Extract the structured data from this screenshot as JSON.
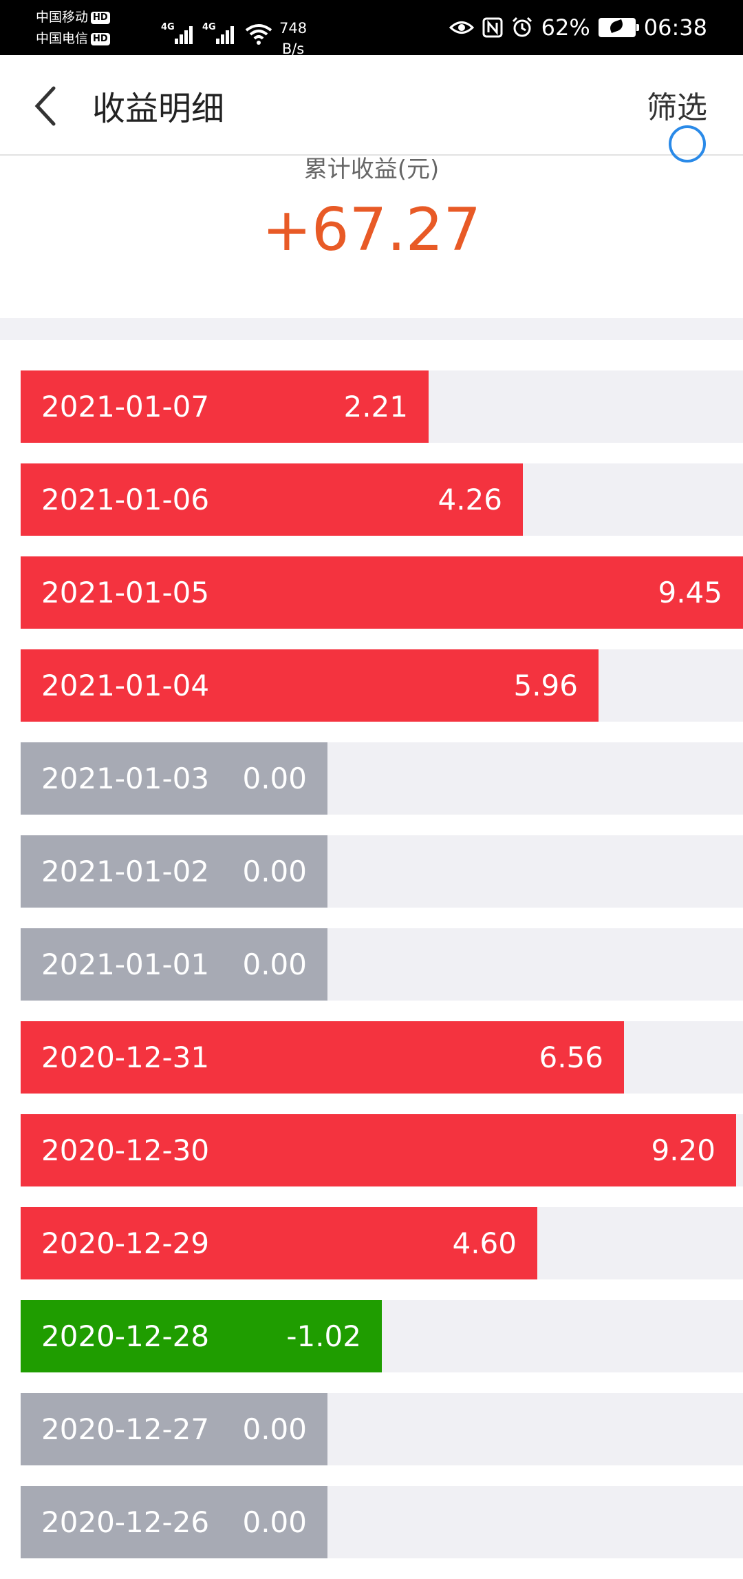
{
  "status_bar": {
    "carrier1": "中国移动",
    "carrier2": "中国电信",
    "hd_badge": "HD",
    "network1": "4G",
    "network2": "4G",
    "speed_value": "748",
    "speed_unit": "B/s",
    "battery_percent": "62%",
    "time": "06:38"
  },
  "header": {
    "title": "收益明细",
    "filter_label": "筛选"
  },
  "summary": {
    "label": "累计收益(元)",
    "total": "+67.27"
  },
  "colors": {
    "positive": "#f4333f",
    "zero": "#a7aab4",
    "negative": "#1f9d00",
    "total": "#e85a26"
  },
  "rows": [
    {
      "date": "2021-01-07",
      "value": "2.21",
      "status": "positive",
      "share": 0.565
    },
    {
      "date": "2021-01-06",
      "value": "4.26",
      "status": "positive",
      "share": 0.695
    },
    {
      "date": "2021-01-05",
      "value": "9.45",
      "status": "positive",
      "share": 1.0
    },
    {
      "date": "2021-01-04",
      "value": "5.96",
      "status": "positive",
      "share": 0.8
    },
    {
      "date": "2021-01-03",
      "value": "0.00",
      "status": "zero",
      "share": 0.425
    },
    {
      "date": "2021-01-02",
      "value": "0.00",
      "status": "zero",
      "share": 0.425
    },
    {
      "date": "2021-01-01",
      "value": "0.00",
      "status": "zero",
      "share": 0.425
    },
    {
      "date": "2020-12-31",
      "value": "6.56",
      "status": "positive",
      "share": 0.835
    },
    {
      "date": "2020-12-30",
      "value": "9.20",
      "status": "positive",
      "share": 0.99
    },
    {
      "date": "2020-12-29",
      "value": "4.60",
      "status": "positive",
      "share": 0.715
    },
    {
      "date": "2020-12-28",
      "value": "-1.02",
      "status": "negative",
      "share": 0.5
    },
    {
      "date": "2020-12-27",
      "value": "0.00",
      "status": "zero",
      "share": 0.425
    },
    {
      "date": "2020-12-26",
      "value": "0.00",
      "status": "zero",
      "share": 0.425
    }
  ]
}
